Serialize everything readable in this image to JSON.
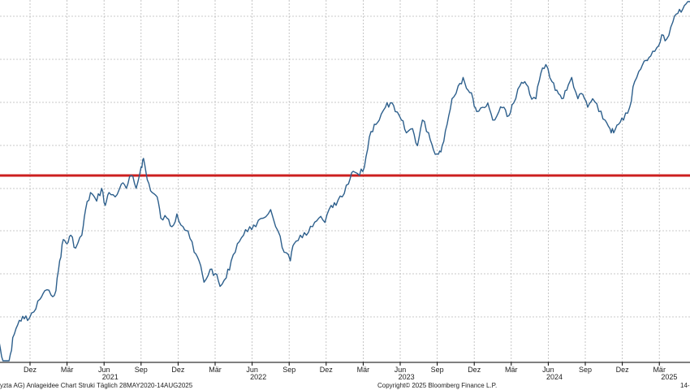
{
  "chart_data": {
    "type": "line",
    "title": "",
    "xlabel": "",
    "ylabel": "",
    "grid": true,
    "x_ticks": [
      "Dez",
      "Mär",
      "Jun",
      "Sep",
      "Dez",
      "Mär",
      "Jun",
      "Sep",
      "Dez",
      "Mär",
      "Jun",
      "Sep",
      "Dez",
      "Mär",
      "Jun",
      "Sep",
      "Dez",
      "Mär",
      "Ju"
    ],
    "x_tick_months": [
      7,
      10,
      13,
      16,
      19,
      22,
      25,
      28,
      31,
      34,
      37,
      40,
      43,
      46,
      49,
      52,
      55,
      58,
      61
    ],
    "year_labels": [
      {
        "label": "2021",
        "month": 13.5
      },
      {
        "label": "2022",
        "month": 25.5
      },
      {
        "label": "2023",
        "month": 37.5
      },
      {
        "label": "2024",
        "month": 49.5
      },
      {
        "label": "2025",
        "month": 58.8
      }
    ],
    "reference_line": {
      "value": 5.45,
      "color": "#cc1f1f"
    },
    "series": [
      {
        "color": "#2d5f8c",
        "x": [
          4.5,
          4.8,
          5.0,
          5.3,
          5.6,
          6.0,
          6.4,
          6.8,
          7.3,
          7.8,
          8.2,
          8.7,
          9.1,
          9.4,
          9.7,
          10.0,
          10.3,
          10.7,
          11.2,
          11.5,
          11.9,
          12.4,
          12.8,
          13.1,
          13.4,
          13.9,
          14.4,
          14.8,
          15.2,
          15.6,
          16.0,
          16.2,
          16.5,
          16.9,
          17.3,
          17.6,
          18.1,
          18.5,
          18.9,
          19.4,
          19.8,
          20.3,
          20.7,
          21.1,
          21.6,
          22.0,
          22.4,
          22.9,
          23.3,
          23.8,
          24.3,
          24.8,
          25.3,
          25.9,
          26.5,
          27.1,
          27.6,
          28.1,
          28.4,
          28.9,
          29.4,
          29.9,
          30.4,
          30.9,
          31.4,
          31.8,
          32.3,
          32.8,
          33.2,
          33.7,
          34.1,
          34.5,
          34.9,
          35.3,
          35.8,
          36.2,
          36.6,
          37.1,
          37.5,
          38.0,
          38.4,
          38.8,
          39.3,
          39.7,
          40.1,
          40.4,
          40.8,
          41.2,
          41.7,
          42.1,
          42.5,
          42.9,
          43.2,
          43.7,
          44.1,
          44.5,
          45.0,
          45.4,
          45.8,
          46.2,
          46.7,
          47.1,
          47.5,
          48.0,
          48.4,
          48.8,
          49.3,
          49.7,
          50.1,
          50.5,
          50.9,
          51.4,
          51.8,
          52.2,
          52.6,
          53.1,
          53.6,
          54.0,
          54.3,
          54.7,
          55.1,
          55.6,
          56.0,
          56.5,
          56.9,
          57.3,
          57.8,
          58.2,
          58.6,
          59.1,
          59.5,
          59.9,
          60.3,
          60.7,
          61.1,
          61.3
        ],
        "values": [
          3.5,
          3.25,
          3.05,
          3.2,
          3.55,
          3.7,
          3.8,
          3.75,
          3.85,
          4.0,
          4.1,
          4.05,
          4.1,
          4.45,
          4.7,
          4.65,
          4.75,
          4.6,
          4.75,
          5.05,
          5.25,
          5.15,
          5.3,
          5.1,
          5.25,
          5.2,
          5.35,
          5.3,
          5.45,
          5.3,
          5.55,
          5.65,
          5.4,
          5.25,
          5.2,
          4.95,
          4.95,
          4.85,
          5.0,
          4.85,
          4.8,
          4.55,
          4.45,
          4.2,
          4.35,
          4.3,
          4.15,
          4.25,
          4.45,
          4.65,
          4.75,
          4.85,
          4.85,
          4.95,
          5.05,
          4.8,
          4.55,
          4.45,
          4.65,
          4.75,
          4.75,
          4.85,
          4.95,
          4.9,
          5.1,
          5.1,
          5.2,
          5.35,
          5.5,
          5.45,
          5.55,
          5.9,
          6.05,
          6.1,
          6.25,
          6.3,
          6.2,
          6.1,
          5.95,
          6.0,
          5.8,
          6.1,
          5.95,
          5.75,
          5.7,
          5.8,
          6.05,
          6.35,
          6.5,
          6.6,
          6.45,
          6.35,
          6.2,
          6.25,
          6.3,
          6.1,
          6.2,
          6.25,
          6.15,
          6.3,
          6.5,
          6.55,
          6.4,
          6.35,
          6.65,
          6.75,
          6.55,
          6.45,
          6.35,
          6.45,
          6.6,
          6.35,
          6.4,
          6.25,
          6.35,
          6.2,
          6.1,
          6.0,
          5.95,
          6.05,
          6.1,
          6.25,
          6.55,
          6.7,
          6.8,
          6.85,
          6.95,
          7.1,
          7.05,
          7.25,
          7.35,
          7.4,
          7.55,
          7.7,
          7.8,
          7.9
        ]
      }
    ]
  },
  "footer": {
    "left_text": "yzta AG) Anlageidee Chart Struki   Täglich 28MAY2020-14AUG2025",
    "center_text": "Copyright© 2025 Bloomberg Finance L.P.",
    "right_text": "14-"
  }
}
